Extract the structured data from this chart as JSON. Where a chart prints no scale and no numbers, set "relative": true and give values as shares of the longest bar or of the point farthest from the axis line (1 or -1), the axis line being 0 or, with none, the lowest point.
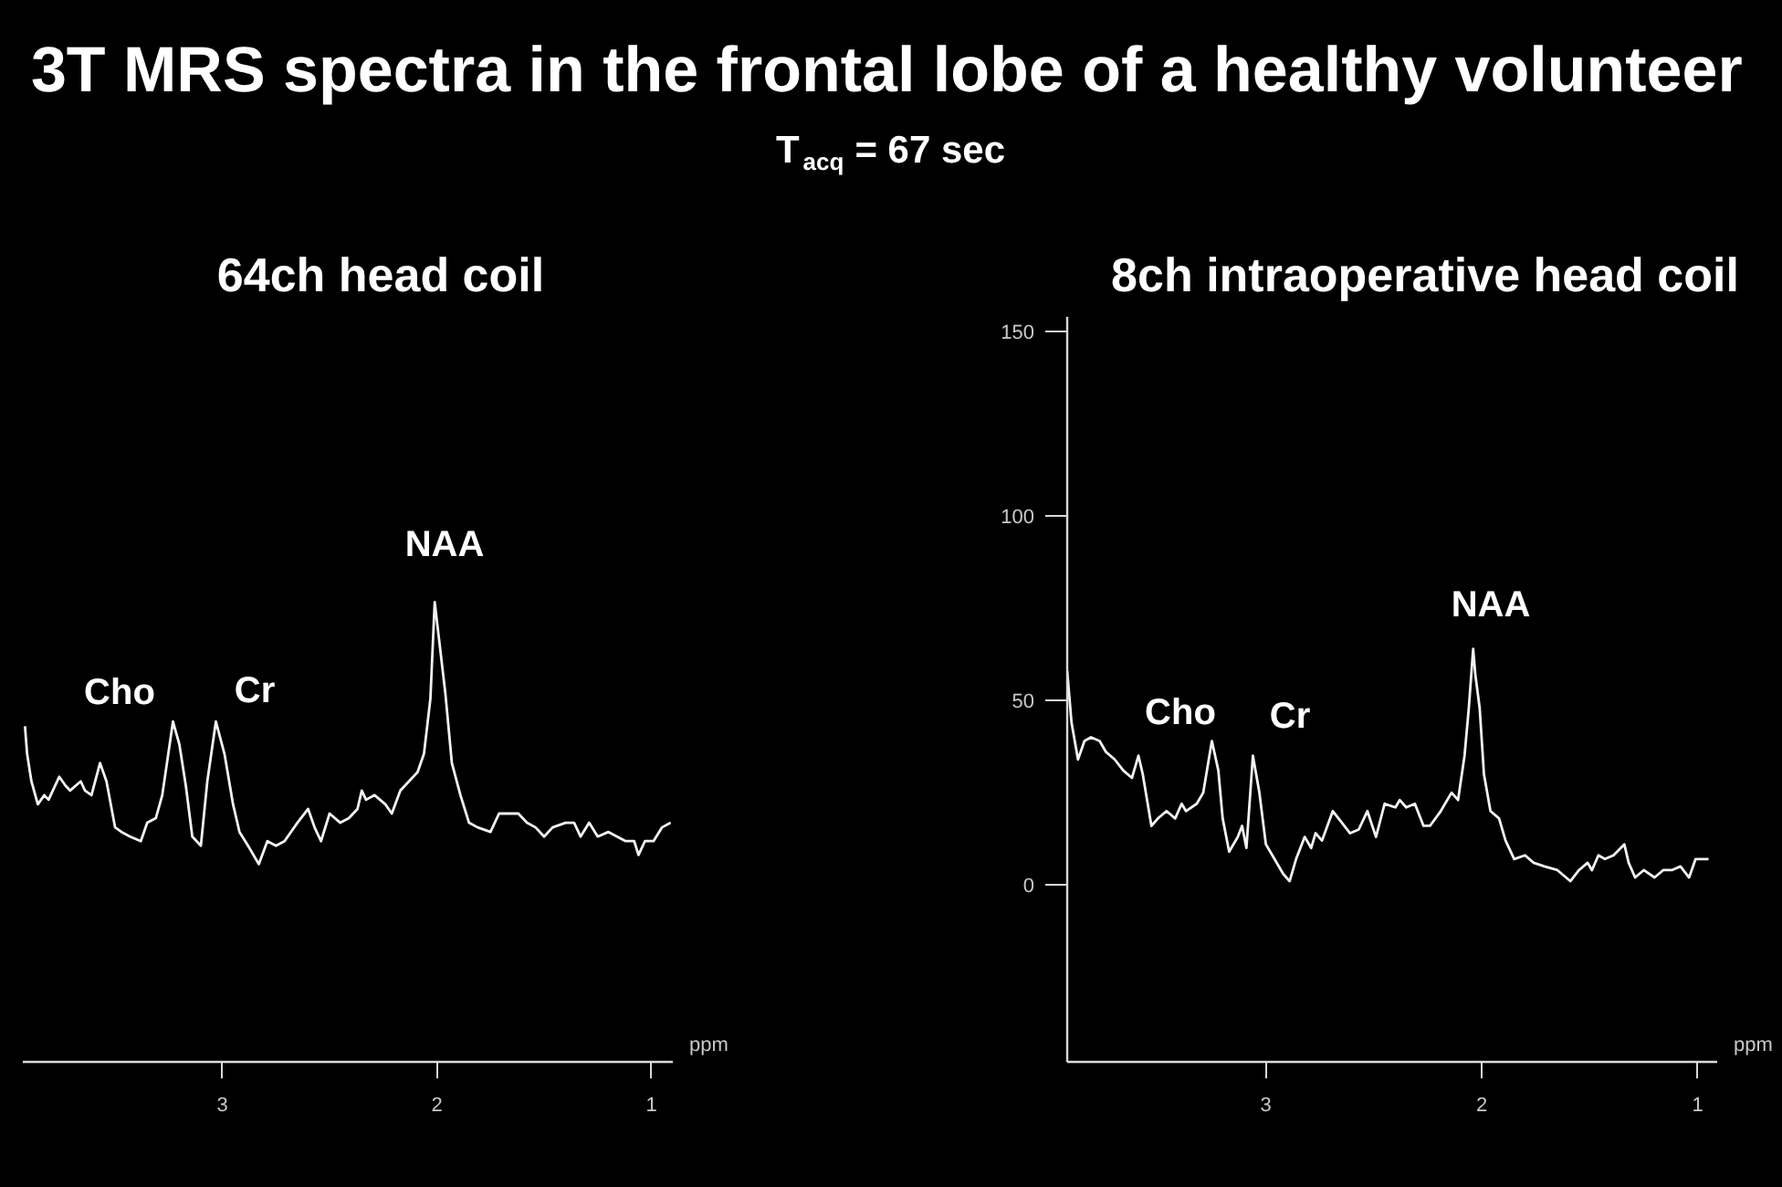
{
  "chart_data": [
    {
      "type": "other",
      "title": "3T MRS spectra in the frontal lobe of a healthy volunteer",
      "subtitle": "T$_{acq}$ = 67 sec"
    },
    {
      "type": "line",
      "title": "64ch head coil",
      "xlabel": "ppm",
      "relative": true,
      "color": "#f2f2f2",
      "xlim": [
        3.93,
        0.9
      ],
      "xticks": [
        3,
        2,
        1
      ],
      "x": [
        3.92,
        3.91,
        3.89,
        3.86,
        3.83,
        3.81,
        3.76,
        3.73,
        3.71,
        3.66,
        3.64,
        3.61,
        3.57,
        3.54,
        3.5,
        3.47,
        3.43,
        3.38,
        3.35,
        3.31,
        3.28,
        3.23,
        3.2,
        3.17,
        3.14,
        3.1,
        3.07,
        3.03,
        2.99,
        2.95,
        2.92,
        2.88,
        2.83,
        2.79,
        2.75,
        2.71,
        2.65,
        2.6,
        2.57,
        2.54,
        2.5,
        2.45,
        2.41,
        2.37,
        2.35,
        2.33,
        2.29,
        2.24,
        2.21,
        2.17,
        2.13,
        2.09,
        2.06,
        2.03,
        2.01,
        1.99,
        1.96,
        1.93,
        1.89,
        1.85,
        1.81,
        1.75,
        1.71,
        1.67,
        1.62,
        1.58,
        1.54,
        1.5,
        1.46,
        1.4,
        1.36,
        1.33,
        1.29,
        1.25,
        1.2,
        1.16,
        1.12,
        1.08,
        1.06,
        1.03,
        0.99,
        0.95,
        0.91
      ],
      "values": [
        0.73,
        0.67,
        0.61,
        0.56,
        0.58,
        0.57,
        0.62,
        0.6,
        0.59,
        0.61,
        0.59,
        0.58,
        0.65,
        0.61,
        0.51,
        0.5,
        0.49,
        0.48,
        0.52,
        0.53,
        0.58,
        0.74,
        0.69,
        0.6,
        0.49,
        0.47,
        0.61,
        0.74,
        0.67,
        0.56,
        0.5,
        0.47,
        0.43,
        0.48,
        0.47,
        0.48,
        0.52,
        0.55,
        0.51,
        0.48,
        0.54,
        0.52,
        0.53,
        0.55,
        0.59,
        0.57,
        0.58,
        0.56,
        0.54,
        0.59,
        0.61,
        0.63,
        0.67,
        0.79,
        1,
        0.92,
        0.8,
        0.65,
        0.58,
        0.52,
        0.51,
        0.5,
        0.54,
        0.54,
        0.54,
        0.52,
        0.51,
        0.49,
        0.51,
        0.52,
        0.52,
        0.49,
        0.52,
        0.49,
        0.5,
        0.49,
        0.48,
        0.48,
        0.45,
        0.48,
        0.48,
        0.51,
        0.52
      ],
      "annotations": [
        "Cho",
        "Cr",
        "NAA"
      ]
    },
    {
      "type": "line",
      "title": "8ch intraoperative head coil",
      "xlabel": "ppm",
      "color": "#f2f2f2",
      "xlim": [
        3.92,
        0.91
      ],
      "xticks": [
        3,
        2,
        1
      ],
      "ylim": [
        -48,
        154
      ],
      "yticks": [
        0,
        50,
        100,
        150
      ],
      "x": [
        3.92,
        3.91,
        3.9,
        3.87,
        3.84,
        3.81,
        3.77,
        3.74,
        3.7,
        3.66,
        3.62,
        3.59,
        3.57,
        3.53,
        3.5,
        3.46,
        3.42,
        3.39,
        3.37,
        3.32,
        3.29,
        3.25,
        3.22,
        3.2,
        3.17,
        3.13,
        3.11,
        3.09,
        3.06,
        3.03,
        3.0,
        2.96,
        2.92,
        2.89,
        2.86,
        2.82,
        2.79,
        2.77,
        2.74,
        2.69,
        2.65,
        2.61,
        2.57,
        2.53,
        2.49,
        2.45,
        2.4,
        2.38,
        2.35,
        2.31,
        2.27,
        2.24,
        2.19,
        2.14,
        2.11,
        2.08,
        2.06,
        2.04,
        2.03,
        2.01,
        1.99,
        1.96,
        1.92,
        1.89,
        1.85,
        1.8,
        1.76,
        1.71,
        1.65,
        1.59,
        1.55,
        1.51,
        1.49,
        1.46,
        1.43,
        1.39,
        1.34,
        1.32,
        1.29,
        1.25,
        1.2,
        1.16,
        1.12,
        1.08,
        1.04,
        1.01,
        0.95
      ],
      "values": [
        58,
        51,
        44,
        34,
        39,
        40,
        39,
        36,
        34,
        31,
        29,
        35,
        30,
        16,
        18,
        20,
        18,
        22,
        20,
        22,
        25,
        39,
        31,
        18,
        9,
        13,
        16,
        10,
        35,
        25,
        11,
        7,
        3,
        1,
        7,
        13,
        10,
        14,
        12,
        20,
        17,
        14,
        15,
        20,
        13,
        22,
        21,
        23,
        21,
        22,
        16,
        16,
        20,
        25,
        23,
        35,
        48,
        64,
        57,
        48,
        30,
        20,
        18,
        12,
        7,
        8,
        6,
        5,
        4,
        1,
        4,
        6,
        4,
        8,
        7,
        8,
        11,
        6,
        2,
        4,
        2,
        4,
        4,
        5,
        2,
        7,
        7
      ],
      "annotations": [
        "Cho",
        "Cr",
        "NAA"
      ]
    }
  ]
}
